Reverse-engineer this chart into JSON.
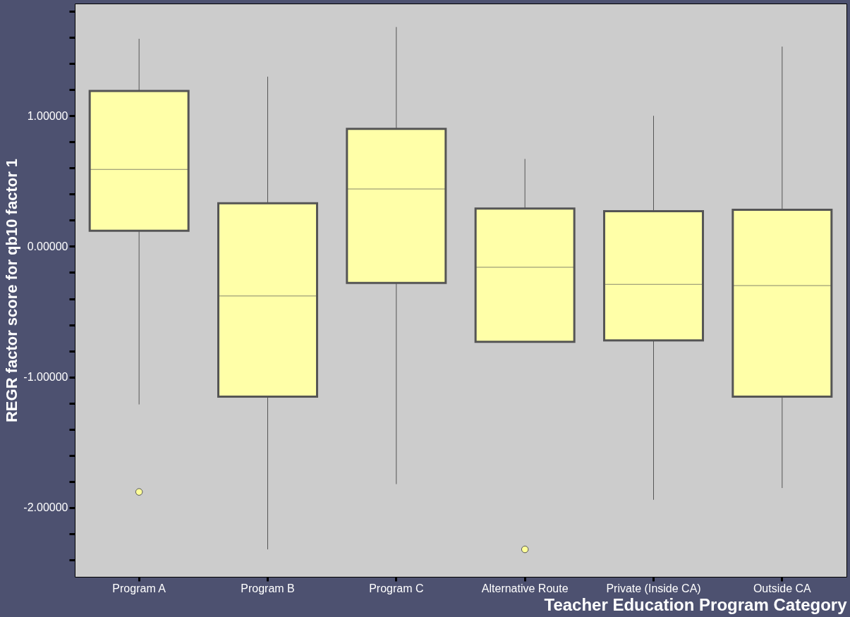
{
  "chart_data": {
    "type": "box",
    "xlabel": "Teacher Education Program Category",
    "ylabel": "REGR factor score for qb10 factor 1",
    "categories": [
      "Program A",
      "Program B",
      "Program C",
      "Alternative Route",
      "Private (Inside CA)",
      "Outside CA"
    ],
    "boxes": [
      {
        "low": -1.21,
        "q1": 0.12,
        "median": 0.59,
        "q3": 1.19,
        "high": 1.59,
        "outliers": [
          -1.88
        ]
      },
      {
        "low": -2.32,
        "q1": -1.15,
        "median": -0.38,
        "q3": 0.33,
        "high": 1.3
      },
      {
        "low": -1.82,
        "q1": -0.28,
        "median": 0.44,
        "q3": 0.9,
        "high": 1.68
      },
      {
        "low": -0.73,
        "q1": -0.73,
        "median": -0.16,
        "q3": 0.29,
        "high": 0.67,
        "outliers": [
          -2.32
        ]
      },
      {
        "low": -1.94,
        "q1": -0.72,
        "median": -0.29,
        "q3": 0.27,
        "high": 1.0
      },
      {
        "low": -1.85,
        "q1": -1.15,
        "median": -0.3,
        "q3": 0.28,
        "high": 1.53
      }
    ],
    "color": "#ffffa8",
    "ylim": [
      -2.53,
      1.86
    ],
    "yticks": [
      {
        "value": -2.4,
        "label": null
      },
      {
        "value": -2.2,
        "label": null
      },
      {
        "value": -2,
        "label": "-2.00000"
      },
      {
        "value": -1.8,
        "label": null
      },
      {
        "value": -1.6,
        "label": null
      },
      {
        "value": -1.4,
        "label": null
      },
      {
        "value": -1.2,
        "label": null
      },
      {
        "value": -1,
        "label": "-1.00000"
      },
      {
        "value": -0.8,
        "label": null
      },
      {
        "value": -0.6,
        "label": null
      },
      {
        "value": -0.4,
        "label": null
      },
      {
        "value": -0.2,
        "label": null
      },
      {
        "value": 0,
        "label": "0.00000"
      },
      {
        "value": 0.2,
        "label": null
      },
      {
        "value": 0.4,
        "label": null
      },
      {
        "value": 0.6,
        "label": null
      },
      {
        "value": 0.8,
        "label": null
      },
      {
        "value": 1,
        "label": "1.00000"
      },
      {
        "value": 1.2,
        "label": null
      },
      {
        "value": 1.4,
        "label": null
      },
      {
        "value": 1.6,
        "label": null
      },
      {
        "value": 1.8,
        "label": null
      }
    ]
  }
}
